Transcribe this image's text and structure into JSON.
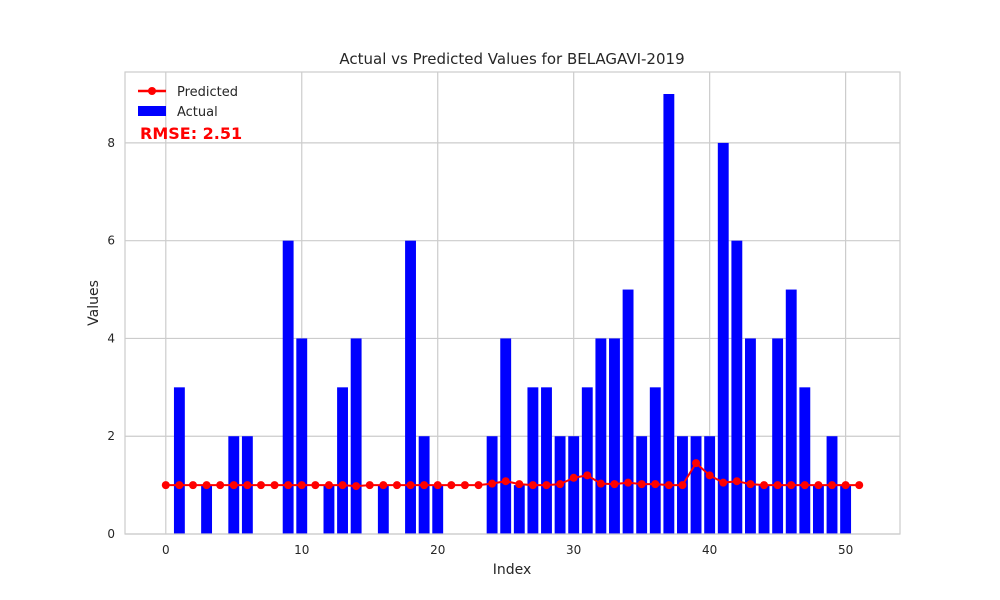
{
  "chart_data": {
    "type": "bar",
    "title": "Actual vs Predicted Values for BELAGAVI-2019",
    "xlabel": "Index",
    "ylabel": "Values",
    "xlim": [
      -3,
      54
    ],
    "ylim": [
      0,
      9.45
    ],
    "xticks": [
      0,
      10,
      20,
      30,
      40,
      50
    ],
    "yticks": [
      0,
      2,
      4,
      6,
      8
    ],
    "grid": true,
    "legend_position": "top-left",
    "annotation": "RMSE: 2.51",
    "annotation_color": "#ff0000",
    "series": [
      {
        "name": "Actual",
        "type": "bar",
        "color": "#0000ff",
        "x": [
          0,
          1,
          2,
          3,
          4,
          5,
          6,
          7,
          8,
          9,
          10,
          11,
          12,
          13,
          14,
          15,
          16,
          17,
          18,
          19,
          20,
          21,
          22,
          23,
          24,
          25,
          26,
          27,
          28,
          29,
          30,
          31,
          32,
          33,
          34,
          35,
          36,
          37,
          38,
          39,
          40,
          41,
          42,
          43,
          44,
          45,
          46,
          47,
          48,
          49,
          50,
          51
        ],
        "values": [
          0,
          3,
          0,
          1,
          0,
          2,
          2,
          0,
          0,
          6,
          4,
          0,
          1,
          3,
          4,
          0,
          1,
          0,
          6,
          2,
          1,
          0,
          0,
          0,
          2,
          4,
          1,
          3,
          3,
          2,
          2,
          3,
          4,
          4,
          5,
          2,
          3,
          9,
          2,
          2,
          2,
          8,
          6,
          4,
          1,
          4,
          5,
          3,
          1,
          2,
          1,
          0
        ]
      },
      {
        "name": "Predicted",
        "type": "line",
        "color": "#ff0000",
        "x": [
          0,
          1,
          2,
          3,
          4,
          5,
          6,
          7,
          8,
          9,
          10,
          11,
          12,
          13,
          14,
          15,
          16,
          17,
          18,
          19,
          20,
          21,
          22,
          23,
          24,
          25,
          26,
          27,
          28,
          29,
          30,
          31,
          32,
          33,
          34,
          35,
          36,
          37,
          38,
          39,
          40,
          41,
          42,
          43,
          44,
          45,
          46,
          47,
          48,
          49,
          50,
          51
        ],
        "values": [
          1.0,
          1.0,
          1.0,
          1.0,
          1.0,
          1.0,
          1.0,
          1.0,
          1.0,
          1.0,
          1.0,
          1.0,
          1.0,
          1.0,
          0.98,
          1.0,
          1.0,
          1.0,
          1.0,
          1.0,
          1.0,
          1.0,
          1.0,
          1.0,
          1.03,
          1.08,
          1.02,
          1.0,
          1.0,
          1.02,
          1.15,
          1.2,
          1.03,
          1.02,
          1.05,
          1.02,
          1.02,
          1.0,
          1.0,
          1.45,
          1.2,
          1.05,
          1.08,
          1.02,
          1.0,
          1.0,
          1.0,
          1.0,
          1.0,
          1.0,
          1.0,
          1.0
        ]
      }
    ]
  }
}
